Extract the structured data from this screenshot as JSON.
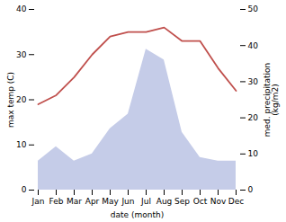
{
  "chart_data": {
    "type": "line",
    "xlabel": "date (month)",
    "ylabel": "max temp (C)",
    "y2label": "med. precipitation\n(kg/m2)",
    "categories": [
      "Jan",
      "Feb",
      "Mar",
      "Apr",
      "May",
      "Jun",
      "Jul",
      "Aug",
      "Sep",
      "Oct",
      "Nov",
      "Dec"
    ],
    "series": [
      {
        "type": "area",
        "axis": "y2",
        "color": "#c5cce8",
        "values": [
          8,
          12,
          8,
          10,
          17,
          21,
          39,
          36,
          16,
          9,
          8,
          8
        ]
      },
      {
        "type": "line",
        "axis": "y",
        "color": "#c0504d",
        "values": [
          19,
          21,
          25,
          30,
          34,
          35,
          35,
          36,
          33,
          33,
          27,
          22
        ]
      }
    ],
    "ylim": [
      0,
      40
    ],
    "yticks": [
      0,
      10,
      20,
      30,
      40
    ],
    "y2lim": [
      0,
      50
    ],
    "y2ticks": [
      0,
      10,
      20,
      30,
      40,
      50
    ]
  }
}
